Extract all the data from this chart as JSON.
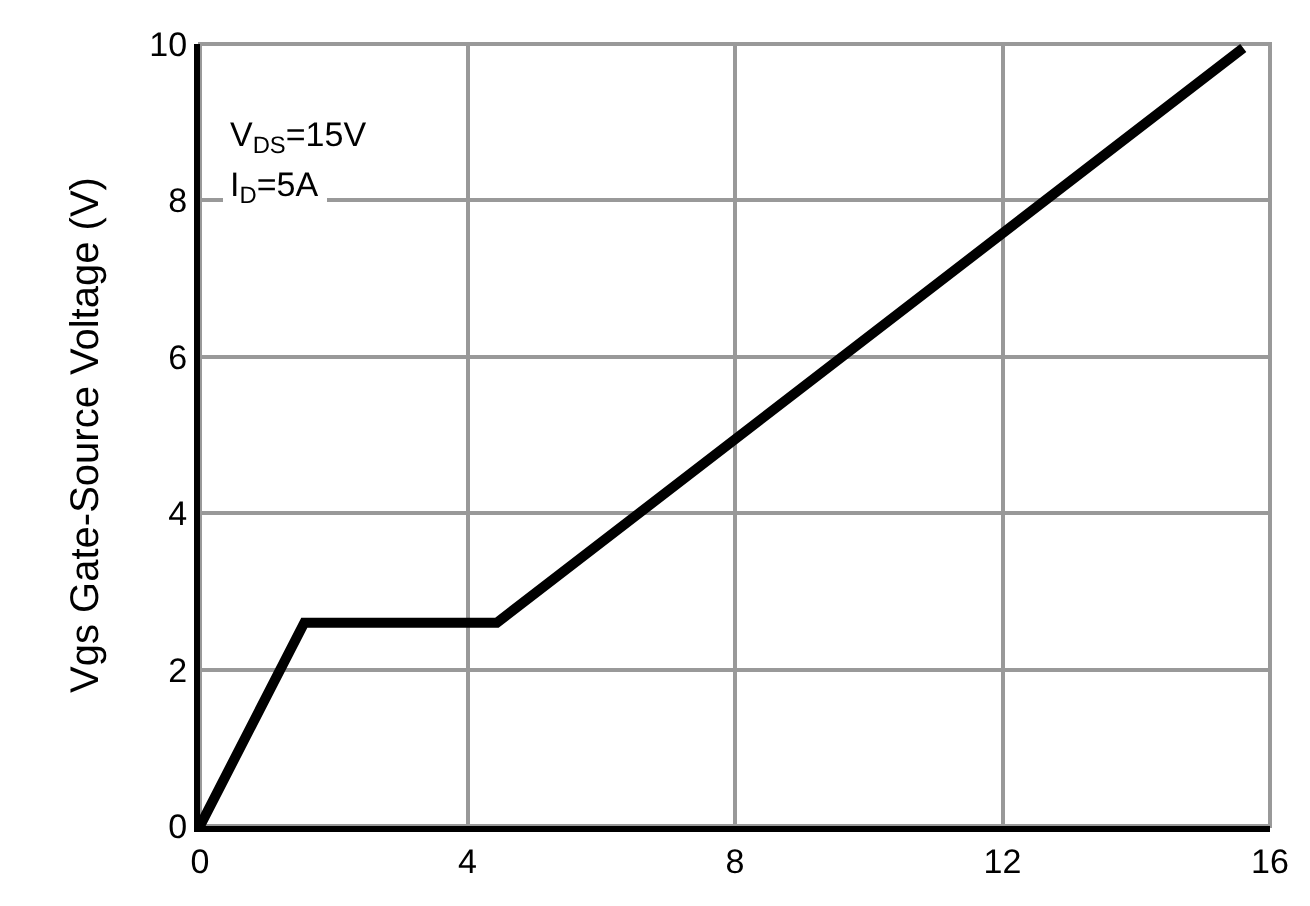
{
  "chart_data": {
    "type": "line",
    "ylabel": "Vgs Gate-Source Voltage (V)",
    "x": [
      0,
      1.56,
      4.44,
      15.6
    ],
    "series": [
      {
        "color": "#000000",
        "values": [
          0,
          2.6,
          2.6,
          9.95
        ]
      }
    ],
    "xlim": [
      0,
      16
    ],
    "xticks": [
      0,
      4,
      8,
      12,
      16
    ],
    "ylim": [
      0,
      10
    ],
    "yticks": [
      0,
      2,
      4,
      6,
      8,
      10
    ],
    "grid": true,
    "marker": "none",
    "line_style": "solid",
    "annotations": [
      "V$_{DS}$=15V",
      "I$_{D}$=5A"
    ]
  }
}
